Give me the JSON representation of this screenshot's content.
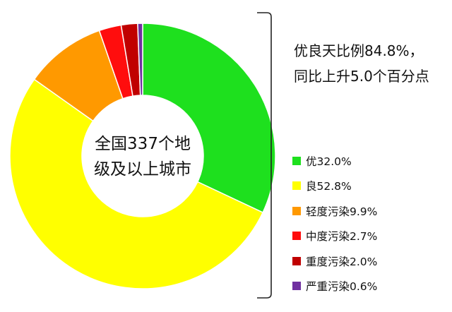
{
  "chart_data": {
    "type": "pie",
    "center_label": [
      "全国337个地",
      "级及以上城市"
    ],
    "summary_lines": [
      "优良天比例84.8%，",
      "同比上升5.0个百分点"
    ],
    "slices": [
      {
        "label": "优",
        "value": 32.0,
        "legend": "优32.0%",
        "color": "#1ee01e"
      },
      {
        "label": "良",
        "value": 52.8,
        "legend": "良52.8%",
        "color": "#ffff00"
      },
      {
        "label": "轻度污染",
        "value": 9.9,
        "legend": "轻度污染9.9%",
        "color": "#ff9900"
      },
      {
        "label": "中度污染",
        "value": 2.7,
        "legend": "中度污染2.7%",
        "color": "#ff0d0d"
      },
      {
        "label": "重度污染",
        "value": 2.0,
        "legend": "重度污染2.0%",
        "color": "#c00000"
      },
      {
        "label": "严重污染",
        "value": 0.6,
        "legend": "严重污染0.6%",
        "color": "#7030a0"
      }
    ],
    "legend_placement": "right"
  }
}
